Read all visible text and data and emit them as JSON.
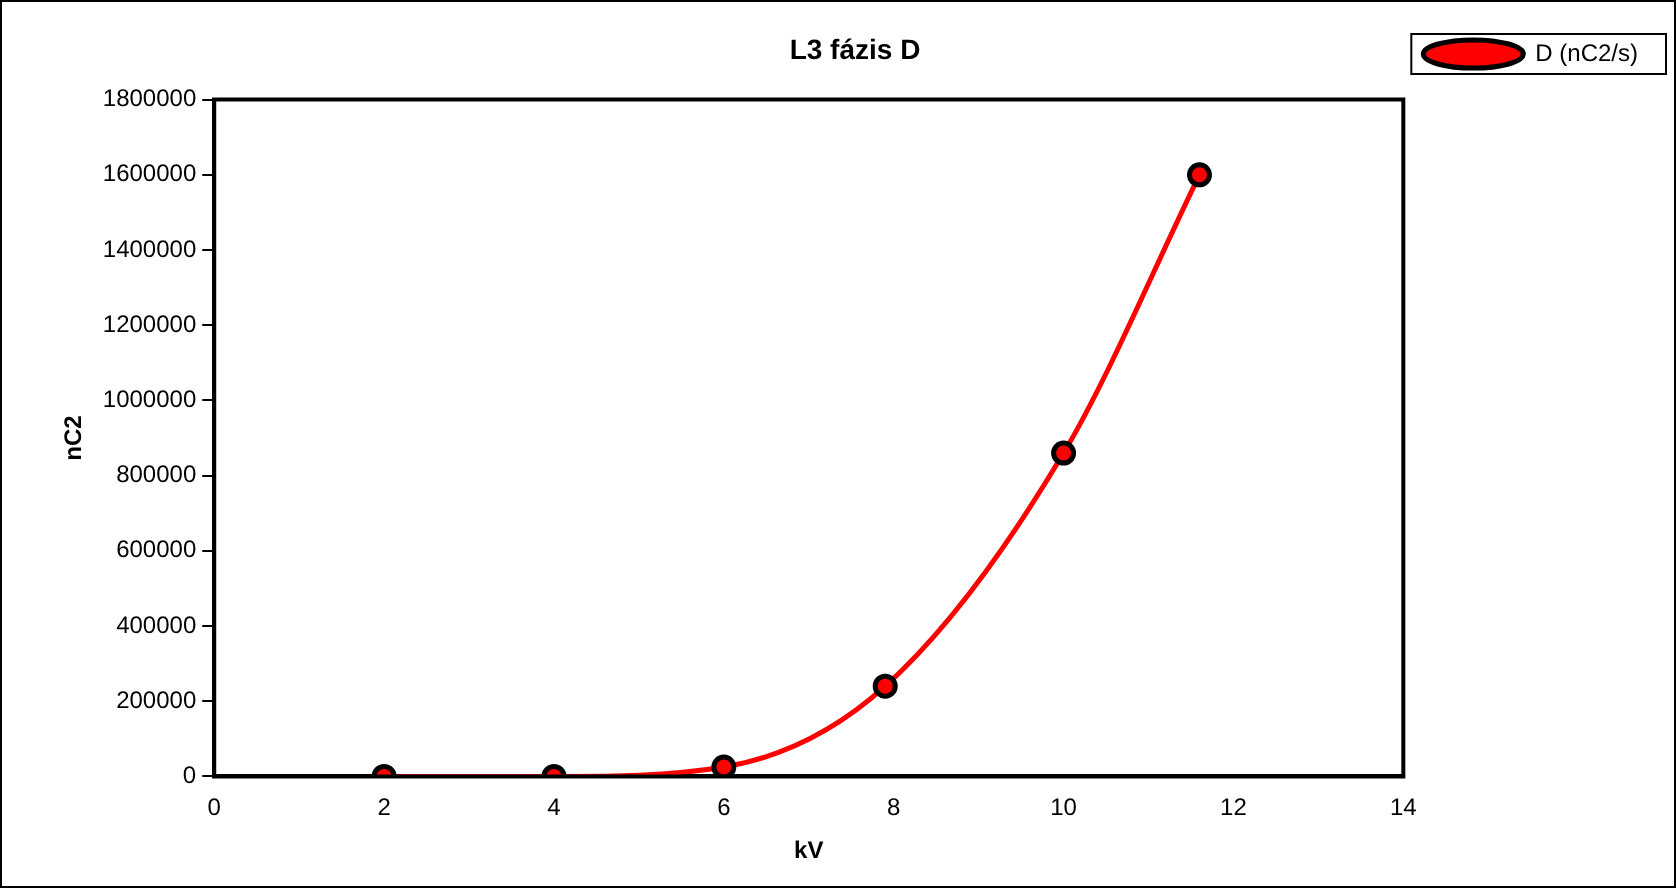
{
  "chart_data": {
    "type": "line",
    "title": "L3 fázis D",
    "xlabel": "kV",
    "ylabel": "nC2",
    "x": [
      2,
      4,
      6,
      7.9,
      10,
      11.6
    ],
    "series": [
      {
        "name": "D (nC2/s)",
        "color": "#ff0000",
        "values": [
          0,
          0,
          25000,
          240000,
          860000,
          1600000
        ]
      }
    ],
    "xlim": [
      0,
      14
    ],
    "xticks": [
      0,
      2,
      4,
      6,
      8,
      10,
      12,
      14
    ],
    "ylim": [
      0,
      1800000
    ],
    "yticks": [
      0,
      200000,
      400000,
      600000,
      800000,
      1000000,
      1200000,
      1400000,
      1600000,
      1800000
    ],
    "grid": false,
    "legend": "top right",
    "marker": "circle",
    "line_style": "solid"
  }
}
